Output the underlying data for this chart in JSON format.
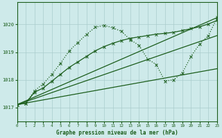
{
  "bg_color": "#ceeaea",
  "grid_color": "#aacccc",
  "line_color": "#1a5c1a",
  "title": "Graphe pression niveau de la mer (hPa)",
  "xlim": [
    0,
    23
  ],
  "ylim": [
    1016.5,
    1020.8
  ],
  "yticks": [
    1017,
    1018,
    1019,
    1020
  ],
  "xticks": [
    0,
    1,
    2,
    3,
    4,
    5,
    6,
    7,
    8,
    9,
    10,
    11,
    12,
    13,
    14,
    15,
    16,
    17,
    18,
    19,
    20,
    21,
    22,
    23
  ],
  "curve_main_x": [
    0,
    1,
    2,
    3,
    4,
    5,
    6,
    7,
    8,
    9,
    10,
    11,
    12,
    13,
    14,
    15,
    16,
    17,
    18,
    19,
    20,
    21,
    22,
    23
  ],
  "curve_main_y": [
    1017.1,
    1017.15,
    1017.6,
    1017.85,
    1018.2,
    1018.6,
    1019.05,
    1019.35,
    1019.65,
    1019.9,
    1019.97,
    1019.88,
    1019.75,
    1019.45,
    1019.25,
    1018.75,
    1018.55,
    1017.95,
    1018.0,
    1018.25,
    1018.85,
    1019.3,
    1019.6,
    1020.25
  ],
  "curve_smooth_x": [
    0,
    1,
    2,
    3,
    4,
    5,
    6,
    7,
    8,
    9,
    10,
    11,
    12,
    13,
    14,
    15,
    16,
    17,
    18,
    19,
    20,
    21,
    22,
    23
  ],
  "curve_smooth_y": [
    1017.1,
    1017.15,
    1017.55,
    1017.7,
    1017.95,
    1018.2,
    1018.45,
    1018.65,
    1018.85,
    1019.05,
    1019.2,
    1019.32,
    1019.42,
    1019.5,
    1019.55,
    1019.6,
    1019.65,
    1019.68,
    1019.72,
    1019.78,
    1019.85,
    1019.92,
    1020.02,
    1020.15
  ],
  "line1_x": [
    0,
    23
  ],
  "line1_y": [
    1017.1,
    1020.25
  ],
  "line2_x": [
    0,
    23
  ],
  "line2_y": [
    1017.1,
    1019.6
  ],
  "line3_x": [
    0,
    23
  ],
  "line3_y": [
    1017.1,
    1018.4
  ]
}
